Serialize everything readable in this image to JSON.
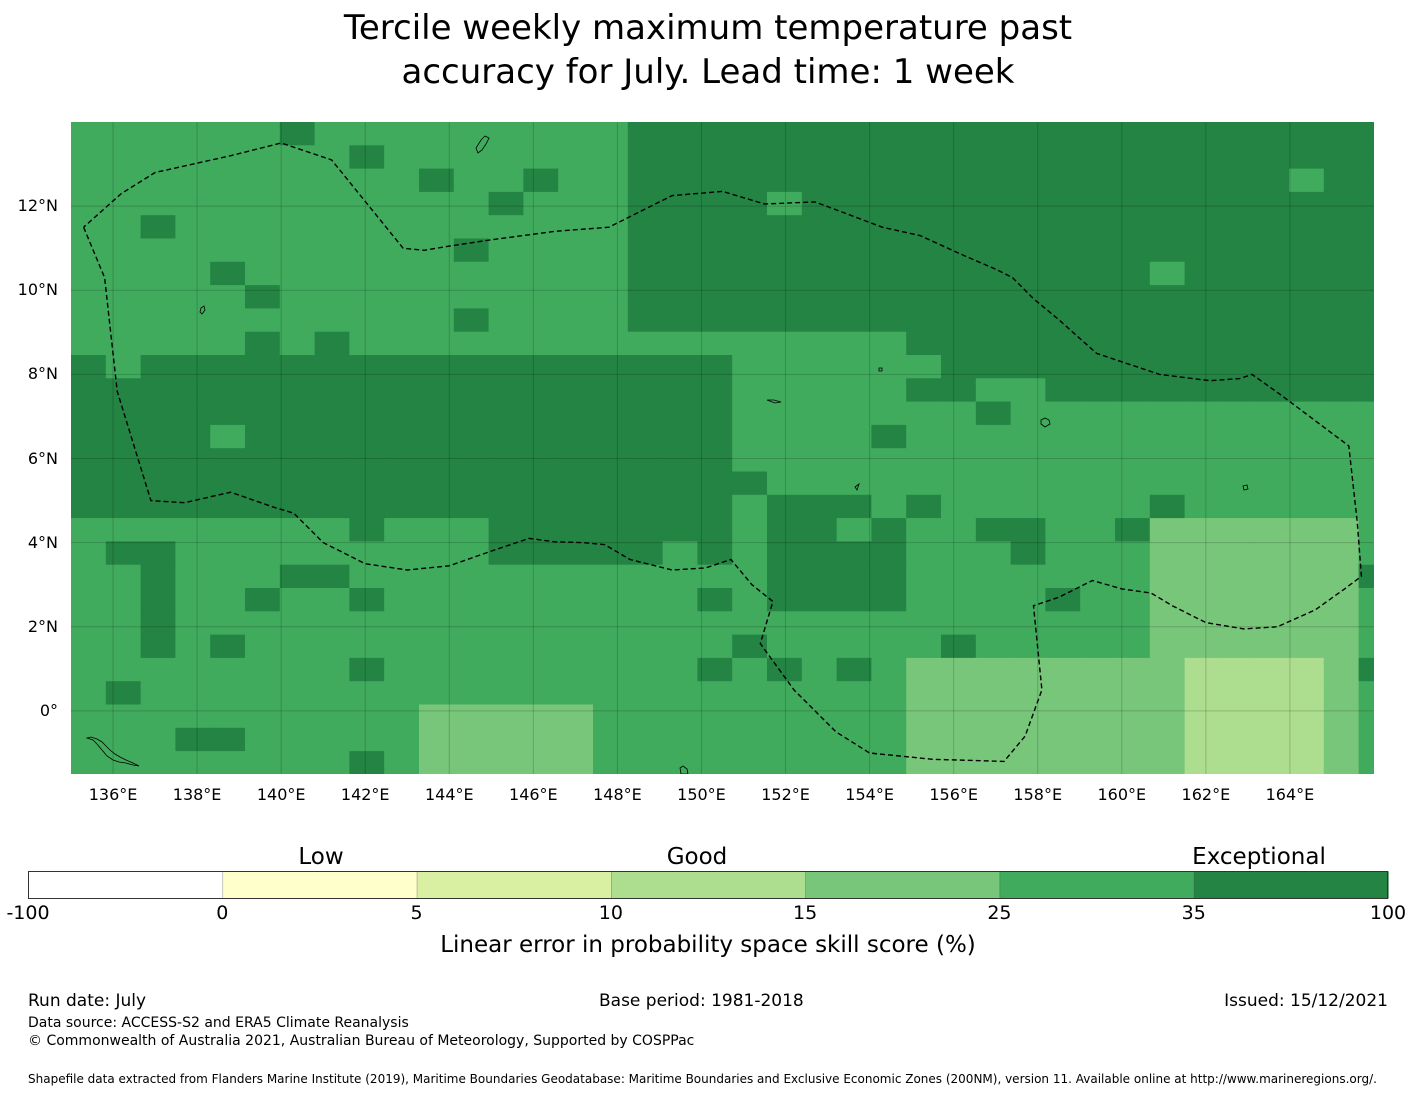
{
  "title": {
    "line1": "Tercile weekly maximum temperature past",
    "line2": "accuracy for July. Lead time: 1 week"
  },
  "map": {
    "lon_range": [
      135,
      166
    ],
    "lat_range": [
      -1.5,
      14
    ],
    "lat_ticks": [
      {
        "value": 12,
        "label": "12°N"
      },
      {
        "value": 10,
        "label": "10°N"
      },
      {
        "value": 8,
        "label": "8°N"
      },
      {
        "value": 6,
        "label": "6°N"
      },
      {
        "value": 4,
        "label": "4°N"
      },
      {
        "value": 2,
        "label": "2°N"
      },
      {
        "value": 0,
        "label": "0°"
      }
    ],
    "lon_ticks": [
      {
        "value": 136,
        "label": "136°E"
      },
      {
        "value": 138,
        "label": "138°E"
      },
      {
        "value": 140,
        "label": "140°E"
      },
      {
        "value": 142,
        "label": "142°E"
      },
      {
        "value": 144,
        "label": "144°E"
      },
      {
        "value": 146,
        "label": "146°E"
      },
      {
        "value": 148,
        "label": "148°E"
      },
      {
        "value": 150,
        "label": "150°E"
      },
      {
        "value": 152,
        "label": "152°E"
      },
      {
        "value": 154,
        "label": "154°E"
      },
      {
        "value": 156,
        "label": "156°E"
      },
      {
        "value": 158,
        "label": "158°E"
      },
      {
        "value": 160,
        "label": "160°E"
      },
      {
        "value": 162,
        "label": "162°E"
      },
      {
        "value": 164,
        "label": "164°E"
      }
    ],
    "eez_boundary": [
      [
        135.3,
        11.5
      ],
      [
        135.8,
        10.3
      ],
      [
        136.1,
        7.6
      ],
      [
        136.9,
        5.0
      ],
      [
        137.7,
        4.95
      ],
      [
        138.8,
        5.2
      ],
      [
        139.8,
        4.85
      ],
      [
        140.3,
        4.7
      ],
      [
        141.0,
        4.0
      ],
      [
        142.0,
        3.5
      ],
      [
        143.0,
        3.35
      ],
      [
        144.0,
        3.45
      ],
      [
        145.0,
        3.8
      ],
      [
        145.9,
        4.1
      ],
      [
        146.5,
        4.02
      ],
      [
        147.2,
        4.0
      ],
      [
        147.7,
        3.95
      ],
      [
        148.3,
        3.6
      ],
      [
        149.3,
        3.35
      ],
      [
        150.1,
        3.4
      ],
      [
        150.7,
        3.6
      ],
      [
        151.2,
        3.0
      ],
      [
        151.7,
        2.6
      ],
      [
        151.4,
        1.6
      ],
      [
        152.2,
        0.5
      ],
      [
        153.2,
        -0.5
      ],
      [
        154.0,
        -1.0
      ],
      [
        155.5,
        -1.15
      ],
      [
        157.2,
        -1.2
      ],
      [
        157.7,
        -0.6
      ],
      [
        158.1,
        0.5
      ],
      [
        157.9,
        2.5
      ],
      [
        158.5,
        2.7
      ],
      [
        159.3,
        3.1
      ],
      [
        160.0,
        2.9
      ],
      [
        160.7,
        2.8
      ],
      [
        161.2,
        2.5
      ],
      [
        162.0,
        2.1
      ],
      [
        162.9,
        1.95
      ],
      [
        163.7,
        2.0
      ],
      [
        164.6,
        2.4
      ],
      [
        165.3,
        2.9
      ],
      [
        165.7,
        3.2
      ],
      [
        165.6,
        4.5
      ],
      [
        165.4,
        6.3
      ],
      [
        163.8,
        7.5
      ],
      [
        163.1,
        8.0
      ],
      [
        162.8,
        7.9
      ],
      [
        162.1,
        7.85
      ],
      [
        160.9,
        8.0
      ],
      [
        159.4,
        8.5
      ],
      [
        158.5,
        9.3
      ],
      [
        157.9,
        9.8
      ],
      [
        157.4,
        10.3
      ],
      [
        157.0,
        10.5
      ],
      [
        156.3,
        10.8
      ],
      [
        155.2,
        11.3
      ],
      [
        154.3,
        11.5
      ],
      [
        153.5,
        11.8
      ],
      [
        152.7,
        12.1
      ],
      [
        151.5,
        12.05
      ],
      [
        150.5,
        12.35
      ],
      [
        149.3,
        12.25
      ],
      [
        148.3,
        11.75
      ],
      [
        147.8,
        11.5
      ],
      [
        146.5,
        11.4
      ],
      [
        145.0,
        11.2
      ],
      [
        144.0,
        11.05
      ],
      [
        143.4,
        10.95
      ],
      [
        142.9,
        11.0
      ],
      [
        141.2,
        13.1
      ],
      [
        140.0,
        13.5
      ],
      [
        138.8,
        13.2
      ],
      [
        137.9,
        13.0
      ],
      [
        137.0,
        12.8
      ],
      [
        136.2,
        12.3
      ],
      [
        135.3,
        11.5
      ]
    ],
    "grid_rows": [
      "ABBBBBBBBBBAAAAAAAAAAAAAAAAAAAAAAAAAAA",
      "AAAAAAAAAAAAAAAAAAAAAAAAAAAAAAAAAAAAAA",
      "AAAAAAAAAAAAAAAAAAAAAAAAAAAAAAAAAAAAAA",
      "BBBBBBBBBBBBBBBBBBBBBBBBBBBBBBBBBBBBBB",
      "BBBBBBBBBBBBBBBBBBBBBBBBBBBBBBBBBBBBBB",
      "BBBBBBBBBBBBBBBBBBBBBBBBBBBBBBBBBBBBBB",
      "BBBBBBBBBBBBBBBBBBBBBBBBBBBBBBBBBBBBBB",
      "BBBBBBBBBBBBBBBBBBBBBBBBBBBBBBBBBBBBBB",
      "BBBBBBBBBBBBBBBBBBBBBBBBBBBBBBBBBBBBBB",
      "BBBBBBBBBBBBBBBBBBBBBBBBBBBBBBBBBBBBBB"
    ]
  },
  "legend": {
    "categories": [
      {
        "label": "Low"
      },
      {
        "label": "Good"
      },
      {
        "label": "Exceptional"
      }
    ],
    "bins": [
      {
        "from": "-100",
        "to": "0",
        "color": "#ffffff"
      },
      {
        "from": "0",
        "to": "5",
        "color": "#ffffcc"
      },
      {
        "from": "5",
        "to": "10",
        "color": "#d9f0a3"
      },
      {
        "from": "10",
        "to": "15",
        "color": "#addd8e"
      },
      {
        "from": "15",
        "to": "25",
        "color": "#78c679"
      },
      {
        "from": "25",
        "to": "35",
        "color": "#41ab5d"
      },
      {
        "from": "35",
        "to": "100",
        "color": "#238443"
      }
    ],
    "tick_labels": [
      "-100",
      "0",
      "5",
      "10",
      "15",
      "25",
      "35",
      "100"
    ],
    "title": "Linear error in probability space skill score (%)"
  },
  "footer": {
    "run_date": "Run date: July",
    "base_period": "Base period: 1981-2018",
    "issued": "Issued: 15/12/2021",
    "data_source": "Data source: ACCESS-S2 and ERA5 Climate Reanalysis",
    "copyright": "© Commonwealth of Australia 2021, Australian Bureau of Meteorology, Supported by COSPPac",
    "shapefile": "Shapefile data extracted from Flanders Marine Institute (2019), Maritime Boundaries Geodatabase: Maritime Boundaries and Exclusive Economic Zones (200NM), version 11. Available online at http://www.marineregions.org/."
  }
}
